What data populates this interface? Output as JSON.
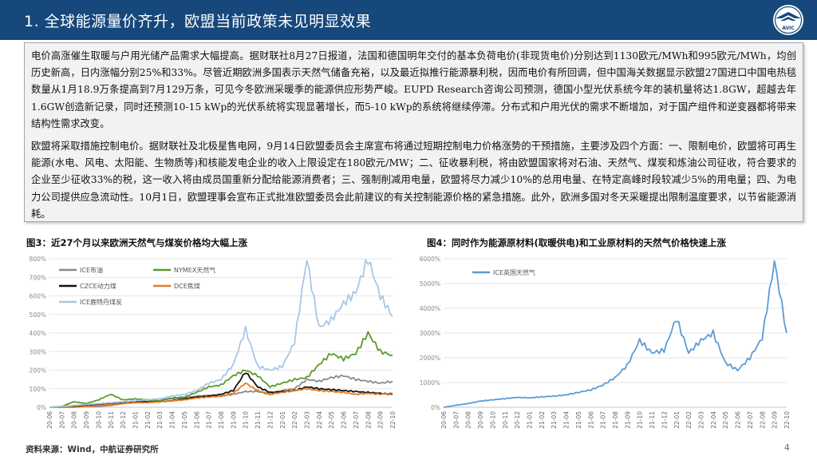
{
  "header": {
    "title": "1. 全球能源量价齐升，欧盟当前政策未见明显效果",
    "logo_text": "AVIC"
  },
  "body": {
    "paragraph1": "电价高涨催生取暖与户用光储产品需求大幅提高。据财联社8月27日报道，法国和德国明年交付的基本负荷电价(非现货电价)分别达到1130欧元/MWh和995欧元/MWh，均创历史新高，日内涨幅分别25%和33%。尽管近期欧洲多国表示天然气储备充裕，以及最近拟推行能源暴利税，因而电价有所回调，但中国海关数据显示欧盟27国进口中国电热毯数量从1月18.9万条提高到7月129万条，可见今冬欧洲采暖季的能源供应形势严峻。EUPD Research咨询公司预测，德国小型光伏系统今年的装机量将达1.8GW，超越去年1.6GW创造新记录，同时还预测10-15 kWp的光伏系统将实现显著增长，而5-10 kWp的系统将继续停滞。分布式和户用光伏的需求不断增加，对于国产组件和逆变器都将带来结构性需求改变。",
    "paragraph2": "欧盟将采取措施控制电价。据财联社及北极星售电网，9月14日欧盟委员会主席宣布将通过短期控制电力价格涨势的干预措施，主要涉及四个方面：一、限制电价，欧盟将可再生能源(水电、风电、太阳能、生物质等)和核能发电企业的收入上限设定在180欧元/MW；二、征收暴利税，将由欧盟国家将对石油、天然气、煤炭和炼油公司征收，符合要求的企业至少征收33%的税，这一收入将由成员国重新分配给能源消费者；三、强制削减用电量，欧盟将尽力减少10%的总用电量、在特定高峰时段较减少5%的用电量；四、为电力公司提供应急流动性。10月1日，欧盟理事会宣布正式批准欧盟委员会此前建议的有关控制能源价格的紧急措施。此外，欧洲多国对冬天采暖提出限制温度要求，以节省能源消耗。"
  },
  "figures": {
    "left_title": "图3：近27个月以来欧洲天然气与煤炭价格均大幅上涨",
    "right_title": "图4：同时作为能源原材料(取暖供电)和工业原材料的天然气价格快速上涨"
  },
  "footer": {
    "source": "资料来源：Wind，中航证券研究所",
    "page_number": "4"
  },
  "chart_data": [
    {
      "type": "line",
      "x": [
        "20-06",
        "20-07",
        "20-08",
        "20-09",
        "20-10",
        "20-11",
        "20-12",
        "21-01",
        "21-02",
        "21-03",
        "21-04",
        "21-05",
        "21-06",
        "21-07",
        "21-08",
        "21-09",
        "21-10",
        "21-11",
        "21-12",
        "22-01",
        "22-02",
        "22-03",
        "22-04",
        "22-05",
        "22-06",
        "22-07",
        "22-08",
        "22-09",
        "22-10"
      ],
      "ylim": [
        0,
        800
      ],
      "y_ticks": [
        "0%",
        "100%",
        "200%",
        "300%",
        "400%",
        "500%",
        "600%",
        "700%",
        "800%"
      ],
      "y_tick_values": [
        0,
        100,
        200,
        300,
        400,
        500,
        600,
        700,
        800
      ],
      "grid": true,
      "legend_position": "top-left",
      "series": [
        {
          "name": "ICE布油",
          "color": "#8a8a8a",
          "values": [
            0,
            5,
            8,
            5,
            5,
            10,
            20,
            30,
            40,
            45,
            45,
            50,
            60,
            65,
            60,
            70,
            85,
            85,
            70,
            90,
            100,
            150,
            140,
            160,
            170,
            150,
            140,
            130,
            140
          ]
        },
        {
          "name": "NYMEX天然气",
          "color": "#5b9a2c",
          "values": [
            0,
            5,
            30,
            20,
            40,
            70,
            40,
            45,
            40,
            35,
            50,
            55,
            80,
            110,
            120,
            170,
            200,
            170,
            110,
            130,
            150,
            160,
            230,
            290,
            260,
            290,
            400,
            300,
            280
          ]
        },
        {
          "name": "CZCE动力煤",
          "color": "#111111",
          "values": [
            0,
            0,
            5,
            10,
            15,
            20,
            25,
            30,
            30,
            30,
            35,
            45,
            55,
            60,
            70,
            90,
            190,
            110,
            80,
            85,
            90,
            110,
            100,
            95,
            90,
            85,
            80,
            75,
            70
          ]
        },
        {
          "name": "DCE焦煤",
          "color": "#e87a1e",
          "values": [
            0,
            -5,
            0,
            5,
            10,
            15,
            20,
            25,
            25,
            30,
            35,
            40,
            50,
            55,
            60,
            75,
            130,
            90,
            70,
            80,
            90,
            100,
            90,
            85,
            80,
            70,
            75,
            70,
            75
          ]
        },
        {
          "name": "ICE鹿特丹煤炭",
          "color": "#a7c7e7",
          "values": [
            0,
            5,
            10,
            15,
            20,
            25,
            30,
            35,
            40,
            45,
            60,
            70,
            90,
            130,
            150,
            230,
            420,
            220,
            200,
            220,
            350,
            800,
            430,
            470,
            560,
            620,
            800,
            600,
            490
          ]
        }
      ]
    },
    {
      "type": "line",
      "x": [
        "20-06",
        "20-07",
        "20-08",
        "20-09",
        "20-10",
        "20-11",
        "20-12",
        "21-01",
        "21-02",
        "21-03",
        "21-04",
        "21-05",
        "21-06",
        "21-07",
        "21-08",
        "21-09",
        "21-10",
        "21-11",
        "21-12",
        "22-01",
        "22-02",
        "22-03",
        "22-04",
        "22-05",
        "22-06",
        "22-07",
        "22-08",
        "22-09",
        "22-10"
      ],
      "ylim": [
        0,
        6000
      ],
      "y_ticks": [
        "0%",
        "1000%",
        "2000%",
        "3000%",
        "4000%",
        "5000%",
        "6000%"
      ],
      "y_tick_values": [
        0,
        1000,
        2000,
        3000,
        4000,
        5000,
        6000
      ],
      "grid": true,
      "legend_position": "top-left",
      "series": [
        {
          "name": "ICE英国天然气",
          "color": "#5b9bd5",
          "values": [
            0,
            80,
            150,
            250,
            300,
            350,
            400,
            380,
            420,
            450,
            500,
            600,
            700,
            900,
            1200,
            1700,
            2700,
            2200,
            2300,
            3600,
            2200,
            2700,
            3000,
            1800,
            1500,
            2000,
            2800,
            5900,
            3000
          ]
        }
      ]
    }
  ]
}
